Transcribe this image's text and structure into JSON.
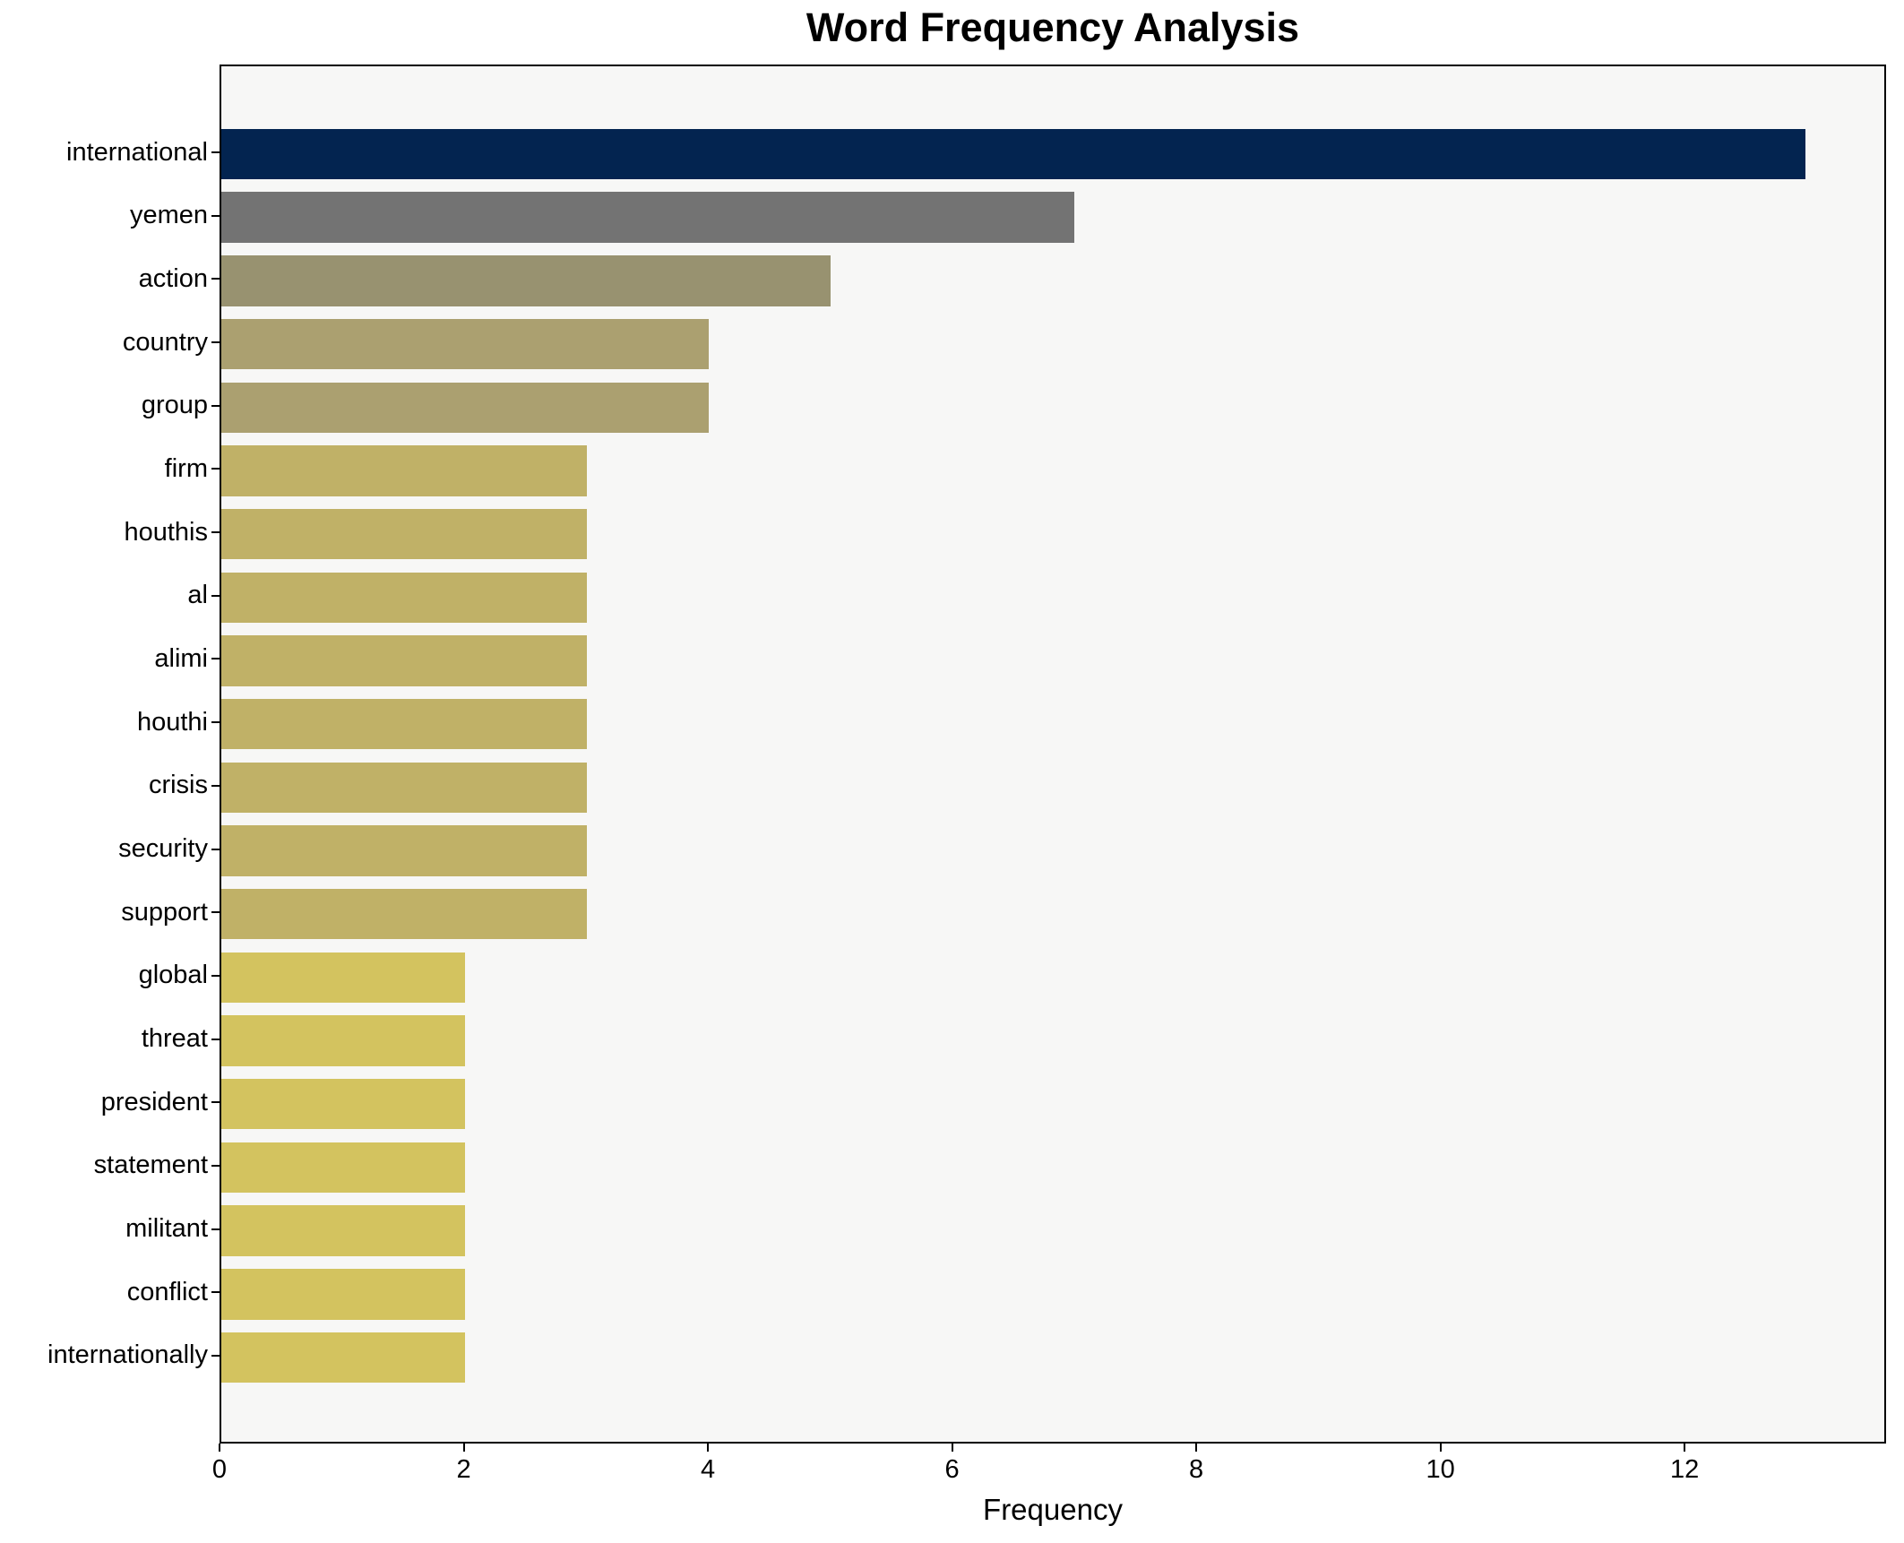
{
  "chart_data": {
    "type": "bar",
    "orientation": "horizontal",
    "title": "Word Frequency Analysis",
    "xlabel": "Frequency",
    "categories": [
      "international",
      "yemen",
      "action",
      "country",
      "group",
      "firm",
      "houthis",
      "al",
      "alimi",
      "houthi",
      "crisis",
      "security",
      "support",
      "global",
      "threat",
      "president",
      "statement",
      "militant",
      "conflict",
      "internationally"
    ],
    "values": [
      13,
      7,
      5,
      4,
      4,
      3,
      3,
      3,
      3,
      3,
      3,
      3,
      3,
      2,
      2,
      2,
      2,
      2,
      2,
      2
    ],
    "bar_colors": [
      "#032450",
      "#737373",
      "#989270",
      "#aba070",
      "#aba070",
      "#c0b167",
      "#c0b167",
      "#c0b167",
      "#c0b167",
      "#c0b167",
      "#c0b167",
      "#c0b167",
      "#c0b167",
      "#d3c35f",
      "#d3c35f",
      "#d3c35f",
      "#d3c35f",
      "#d3c35f",
      "#d3c35f",
      "#d3c35f"
    ],
    "xlim": [
      0,
      13.65
    ],
    "x_ticks": [
      0,
      2,
      4,
      6,
      8,
      10,
      12
    ],
    "grid": false,
    "plot_bg": "#f7f7f6",
    "figure_bg": "#ffffff",
    "text_color": "#000000"
  }
}
